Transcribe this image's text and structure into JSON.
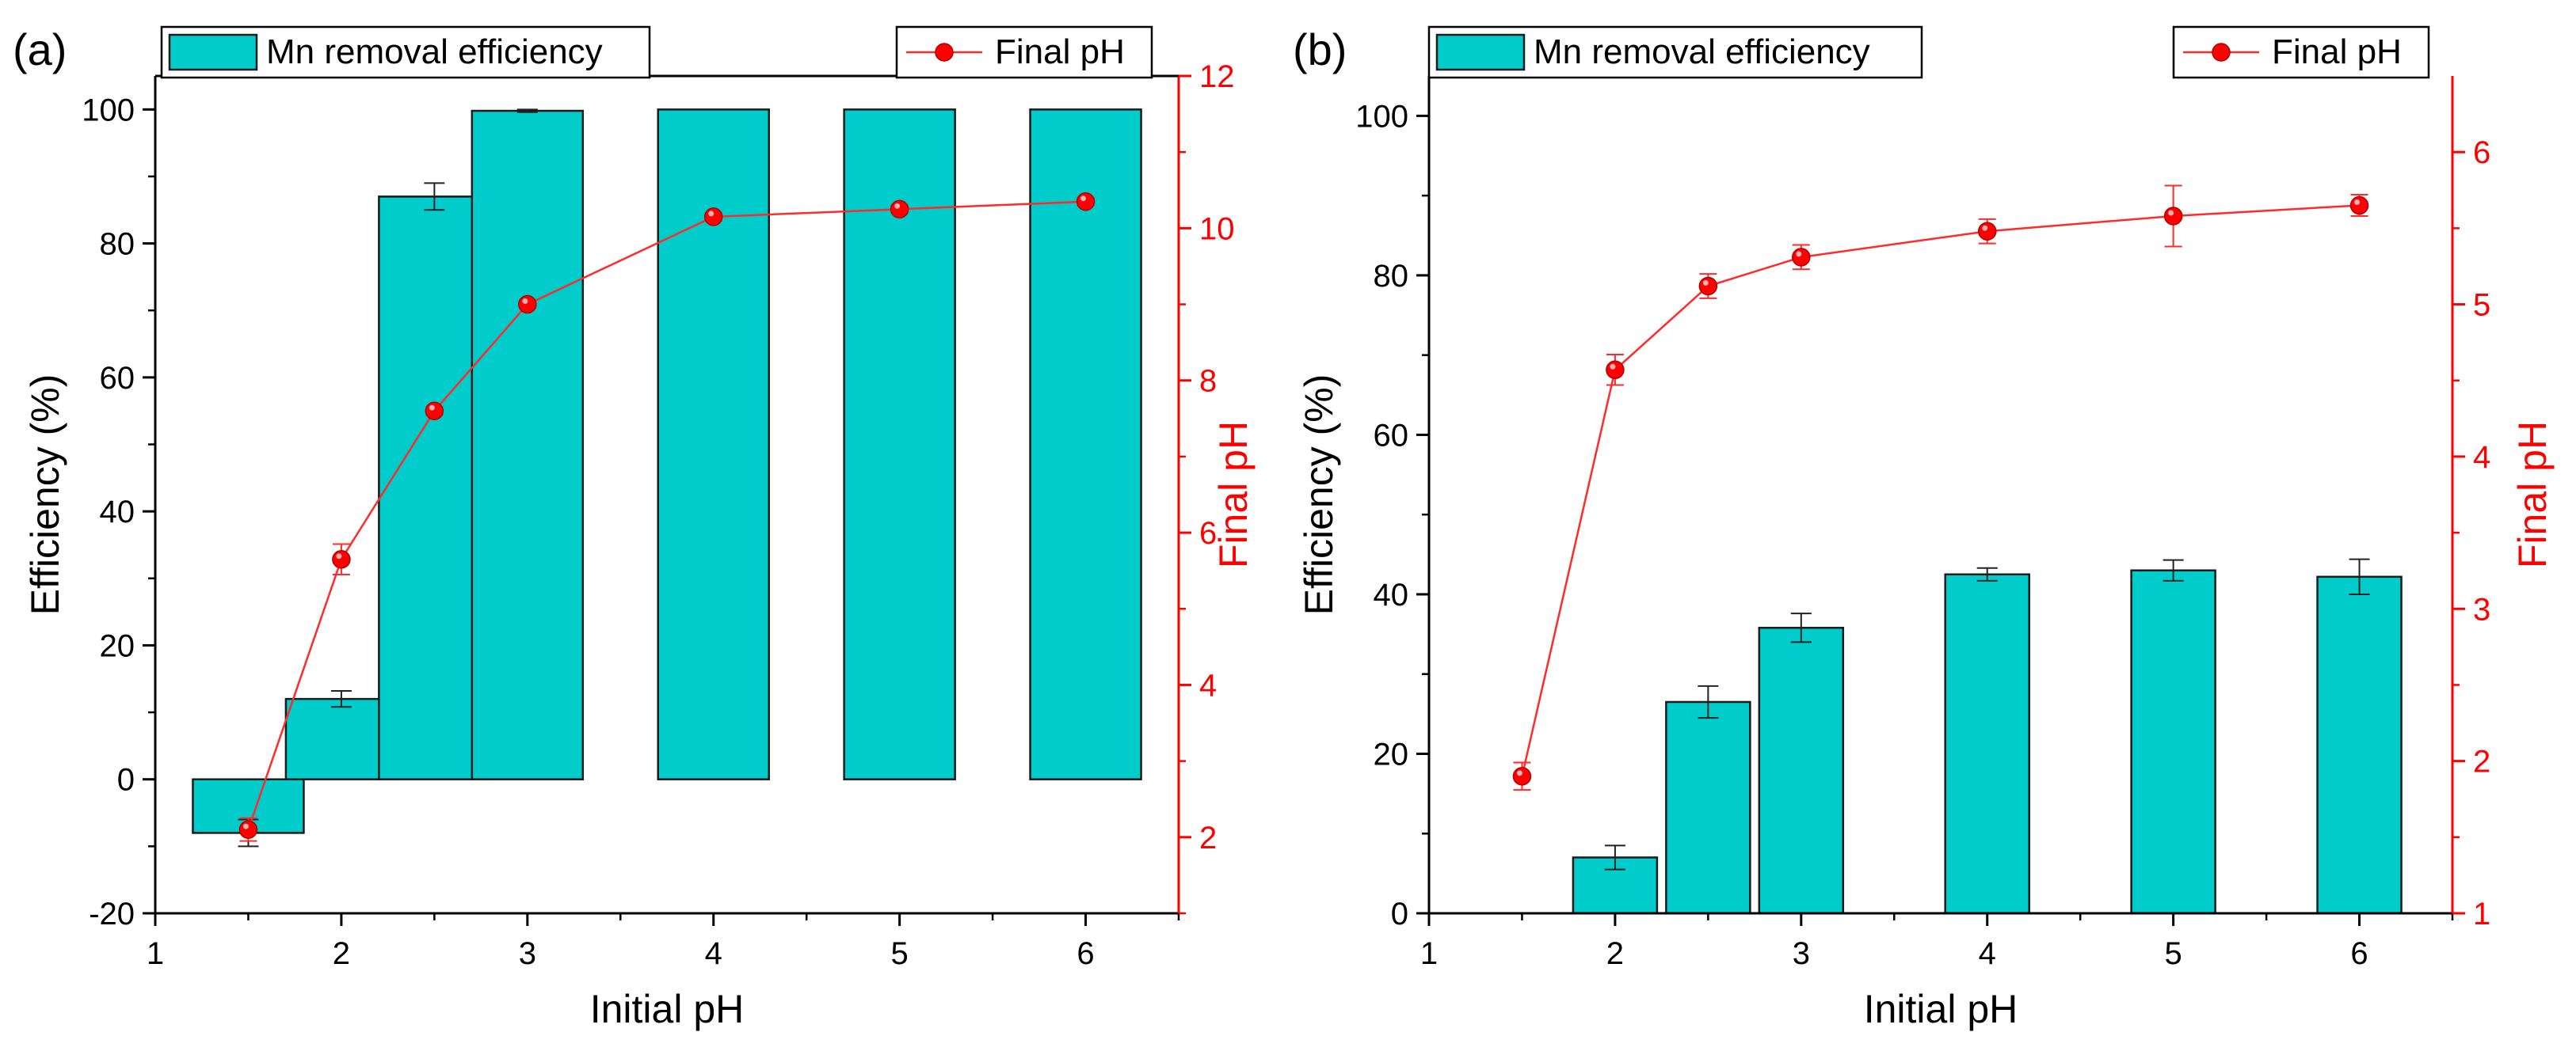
{
  "colors": {
    "bar_fill": "#00CCCC",
    "bar_stroke": "#1a1a1a",
    "line": "#FF2A2A",
    "marker": "#FF0000",
    "axis": "#000000",
    "right_axis": "#FF0000"
  },
  "chart_data": [
    {
      "type": "bar",
      "panel_label": "(a)",
      "xlabel": "Initial pH",
      "ylabel": "Efficiency (%)",
      "y2label": "Final pH",
      "xlim": [
        1,
        6.5
      ],
      "ylim": [
        -20,
        105
      ],
      "y2lim": [
        1,
        12
      ],
      "xticks": [
        1,
        2,
        3,
        4,
        5,
        6
      ],
      "yticks": [
        -20,
        0,
        20,
        40,
        60,
        80,
        100
      ],
      "y2ticks": [
        2,
        4,
        6,
        8,
        10,
        12
      ],
      "grid": false,
      "legend_position": "top",
      "series": [
        {
          "name": "Mn removal efficiency",
          "type": "bar",
          "x": [
            1.5,
            2,
            2.5,
            3,
            4,
            5,
            6
          ],
          "values": [
            -8,
            12,
            87,
            99.8,
            100,
            100,
            100
          ],
          "errors": [
            2,
            1.2,
            2,
            0.2,
            0,
            0,
            0
          ]
        },
        {
          "name": "Final pH",
          "type": "line",
          "axis": "right",
          "x": [
            1.5,
            2,
            2.5,
            3,
            4,
            5,
            6
          ],
          "values": [
            2.1,
            5.65,
            7.6,
            9.0,
            10.15,
            10.25,
            10.35
          ],
          "errors": [
            0.15,
            0.2,
            0.05,
            0.05,
            0.05,
            0.05,
            0.05
          ]
        }
      ]
    },
    {
      "type": "bar",
      "panel_label": "(b)",
      "xlabel": "Initial pH",
      "ylabel": "Efficiency (%)",
      "y2label": "Final pH",
      "xlim": [
        1,
        6.5
      ],
      "ylim": [
        0,
        105
      ],
      "y2lim": [
        1,
        6.5
      ],
      "xticks": [
        1,
        2,
        3,
        4,
        5,
        6
      ],
      "yticks": [
        0,
        20,
        40,
        60,
        80,
        100
      ],
      "y2ticks": [
        1,
        2,
        3,
        4,
        5,
        6
      ],
      "grid": false,
      "legend_position": "top",
      "series": [
        {
          "name": "Mn removal efficiency",
          "type": "bar",
          "x": [
            2,
            2.5,
            3,
            4,
            5,
            6
          ],
          "values": [
            7,
            26.5,
            35.8,
            42.5,
            43,
            42.2
          ],
          "errors": [
            1.5,
            2,
            1.8,
            0.8,
            1.3,
            2.2
          ]
        },
        {
          "name": "Final pH",
          "type": "line",
          "axis": "right",
          "x": [
            1.5,
            2,
            2.5,
            3,
            4,
            5,
            6
          ],
          "values": [
            1.9,
            4.57,
            5.12,
            5.31,
            5.48,
            5.58,
            5.65
          ],
          "errors": [
            0.09,
            0.1,
            0.08,
            0.08,
            0.08,
            0.2,
            0.07
          ]
        }
      ]
    }
  ]
}
